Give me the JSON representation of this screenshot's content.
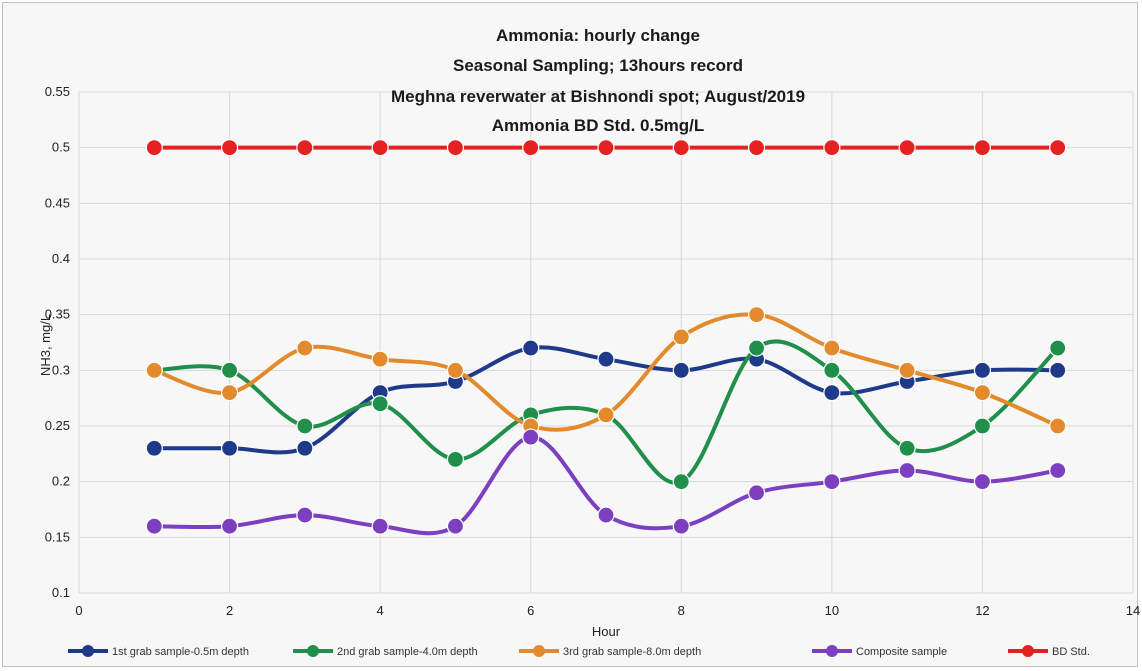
{
  "chart_data": {
    "type": "line",
    "title_lines": [
      "Ammonia: hourly change",
      "Seasonal Sampling; 13hours record",
      "Meghna reverwater at Bishnondi spot; August/2019",
      "Ammonia BD Std. 0.5mg/L"
    ],
    "xlabel": "Hour",
    "ylabel": "NH3, mg/L",
    "xlim": [
      0,
      14
    ],
    "ylim": [
      0.1,
      0.55
    ],
    "x_ticks": [
      "0",
      "2",
      "4",
      "6",
      "8",
      "10",
      "12",
      "14"
    ],
    "y_ticks": [
      "0.1",
      "0.15",
      "0.2",
      "0.25",
      "0.3",
      "0.35",
      "0.4",
      "0.45",
      "0.5",
      "0.55"
    ],
    "x": [
      1,
      2,
      3,
      4,
      5,
      6,
      7,
      8,
      9,
      10,
      11,
      12,
      13
    ],
    "grid": true,
    "smooth": true,
    "legend_position": "bottom",
    "series": [
      {
        "name": "1st grab sample-0.5m depth",
        "color": "#1f3a8a",
        "values": [
          0.23,
          0.23,
          0.23,
          0.28,
          0.29,
          0.32,
          0.31,
          0.3,
          0.31,
          0.28,
          0.29,
          0.3,
          0.3
        ]
      },
      {
        "name": "2nd grab sample-4.0m depth",
        "color": "#1f8f4a",
        "values": [
          0.3,
          0.3,
          0.25,
          0.27,
          0.22,
          0.26,
          0.26,
          0.2,
          0.32,
          0.3,
          0.23,
          0.25,
          0.32
        ]
      },
      {
        "name": "3rd grab sample-8.0m depth",
        "color": "#e38b2c",
        "values": [
          0.3,
          0.28,
          0.32,
          0.31,
          0.3,
          0.25,
          0.26,
          0.33,
          0.35,
          0.32,
          0.3,
          0.28,
          0.25
        ]
      },
      {
        "name": "Composite sample",
        "color": "#7b3fbf",
        "values": [
          0.16,
          0.16,
          0.17,
          0.16,
          0.16,
          0.24,
          0.17,
          0.16,
          0.19,
          0.2,
          0.21,
          0.2,
          0.21
        ]
      },
      {
        "name": "BD Std.",
        "color": "#e52222",
        "values": [
          0.5,
          0.5,
          0.5,
          0.5,
          0.5,
          0.5,
          0.5,
          0.5,
          0.5,
          0.5,
          0.5,
          0.5,
          0.5
        ]
      }
    ]
  }
}
